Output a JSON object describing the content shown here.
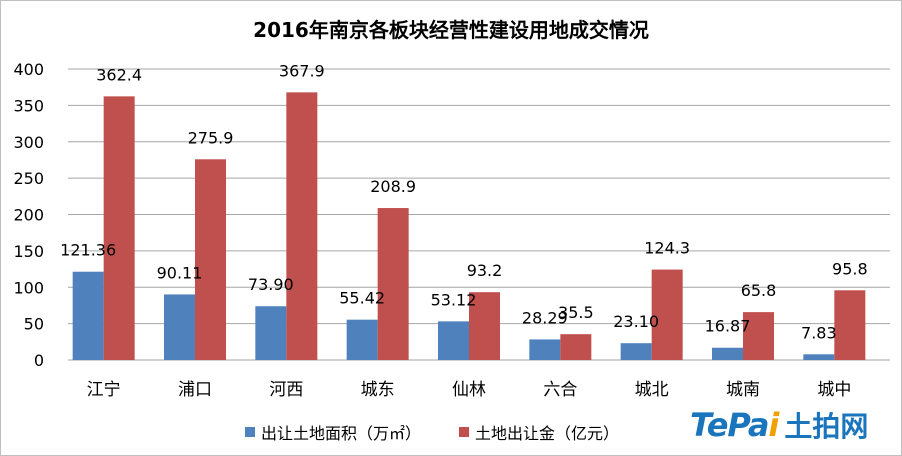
{
  "chart_data": {
    "type": "bar",
    "title": "2016年南京各板块经营性建设用地成交情况",
    "categories": [
      "江宁",
      "浦口",
      "河西",
      "城东",
      "仙林",
      "六合",
      "城北",
      "城南",
      "城中"
    ],
    "series": [
      {
        "name": "出让土地面积（万㎡）",
        "color": "#4f81bd",
        "values": [
          121.36,
          90.11,
          73.9,
          55.42,
          53.12,
          28.29,
          23.1,
          16.87,
          7.83
        ],
        "labels": [
          "121.36",
          "90.11",
          "73.90",
          "55.42",
          "53.12",
          "28.29",
          "23.10",
          "16.87",
          "7.83"
        ]
      },
      {
        "name": "土地出让金（亿元）",
        "color": "#c0504d",
        "values": [
          362.4,
          275.9,
          367.9,
          208.9,
          93.2,
          35.5,
          124.3,
          65.8,
          95.8
        ],
        "labels": [
          "362.4",
          "275.9",
          "367.9",
          "208.9",
          "93.2",
          "35.5",
          "124.3",
          "65.8",
          "95.8"
        ]
      }
    ],
    "ylim": [
      0,
      400
    ],
    "yticks": [
      "0",
      "50",
      "100",
      "150",
      "200",
      "250",
      "300",
      "350",
      "400"
    ],
    "grid": true,
    "legend": "bottom"
  },
  "logo": {
    "en_part1": "TeP",
    "en_part2": "a",
    "en_part3": "i",
    "cn": "土拍网"
  }
}
